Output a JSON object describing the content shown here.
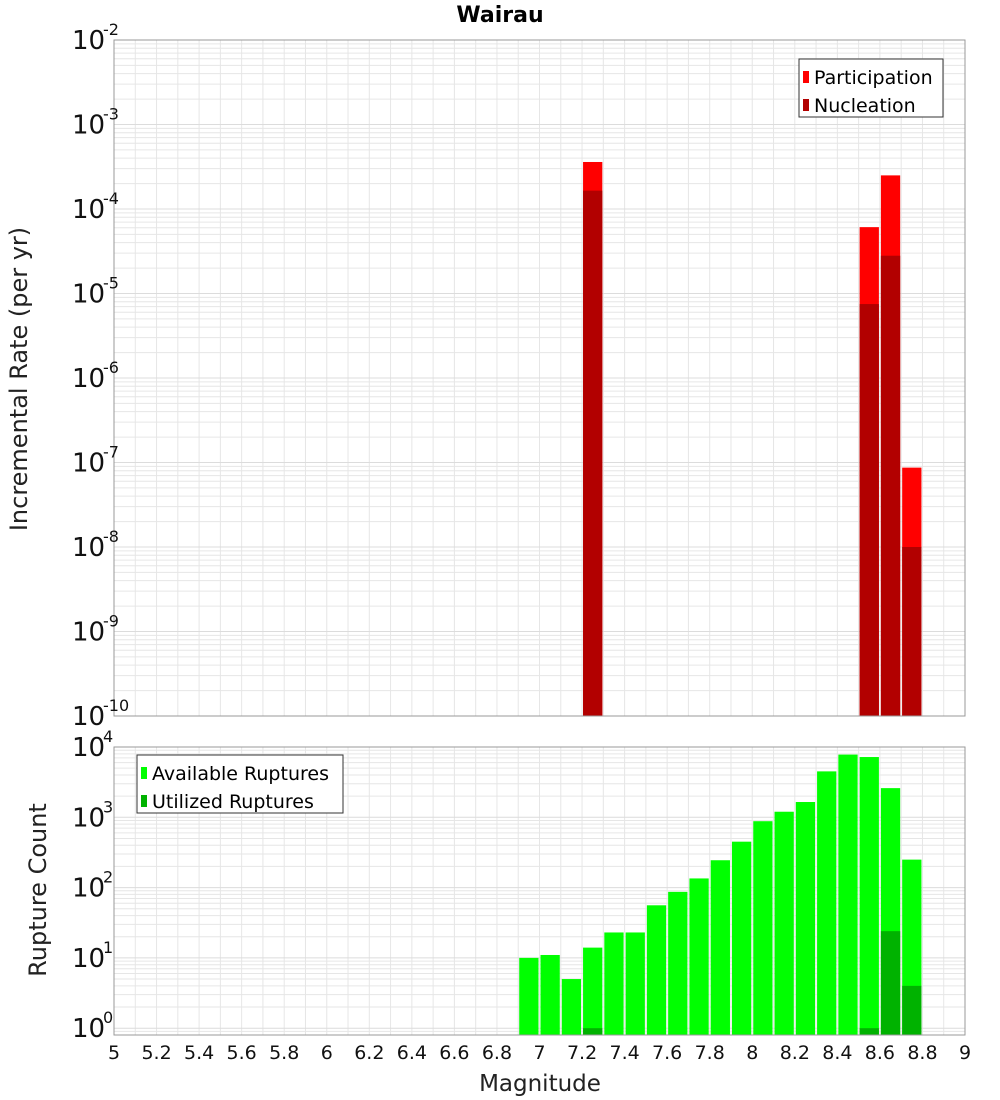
{
  "chart_data": [
    {
      "type": "bar",
      "title": "Wairau",
      "xlabel": "",
      "ylabel": "Incremental Rate (per yr)",
      "xlim": [
        5,
        9
      ],
      "ylim": [
        1e-10,
        0.01
      ],
      "yscale": "log",
      "yticks_exp": [
        -10,
        -9,
        -8,
        -7,
        -6,
        -5,
        -4,
        -3,
        -2
      ],
      "grid": true,
      "legend_position": "top-right",
      "bar_width": 0.1,
      "colors": {
        "Participation": "#ff0000",
        "Nucleation": "#b20000"
      },
      "series": [
        {
          "name": "Participation",
          "x": [
            7.25,
            8.55,
            8.65,
            8.75
          ],
          "values": [
            0.00036,
            6.1e-05,
            0.00025,
            8.7e-08
          ]
        },
        {
          "name": "Nucleation",
          "x": [
            7.25,
            8.55,
            8.65,
            8.75
          ],
          "values": [
            0.000165,
            7.5e-06,
            2.8e-05,
            1e-08
          ]
        }
      ]
    },
    {
      "type": "bar",
      "title": "",
      "xlabel": "Magnitude",
      "ylabel": "Rupture Count",
      "xlim": [
        5,
        9
      ],
      "ylim": [
        0.8,
        10000
      ],
      "yscale": "log",
      "yticks_exp": [
        0,
        1,
        2,
        3,
        4
      ],
      "xticks": [
        "5",
        "5.2",
        "5.4",
        "5.6",
        "5.8",
        "6",
        "6.2",
        "6.4",
        "6.6",
        "6.8",
        "7",
        "7.2",
        "7.4",
        "7.6",
        "7.8",
        "8",
        "8.2",
        "8.4",
        "8.6",
        "8.8",
        "9"
      ],
      "grid": true,
      "legend_position": "top-left",
      "bar_width": 0.1,
      "colors": {
        "Available Ruptures": "#00ff00",
        "Utilized Ruptures": "#00b200"
      },
      "series": [
        {
          "name": "Available Ruptures",
          "x": [
            6.95,
            7.05,
            7.15,
            7.25,
            7.35,
            7.45,
            7.55,
            7.65,
            7.75,
            7.85,
            7.95,
            8.05,
            8.15,
            8.25,
            8.35,
            8.45,
            8.55,
            8.65,
            8.75
          ],
          "values": [
            10,
            11,
            5,
            14,
            23,
            23,
            56,
            87,
            135,
            245,
            450,
            880,
            1200,
            1650,
            4500,
            7800,
            7200,
            2600,
            250
          ]
        },
        {
          "name": "Utilized Ruptures",
          "x": [
            7.25,
            8.55,
            8.65,
            8.75
          ],
          "values": [
            1,
            1,
            24,
            4
          ]
        }
      ]
    }
  ]
}
